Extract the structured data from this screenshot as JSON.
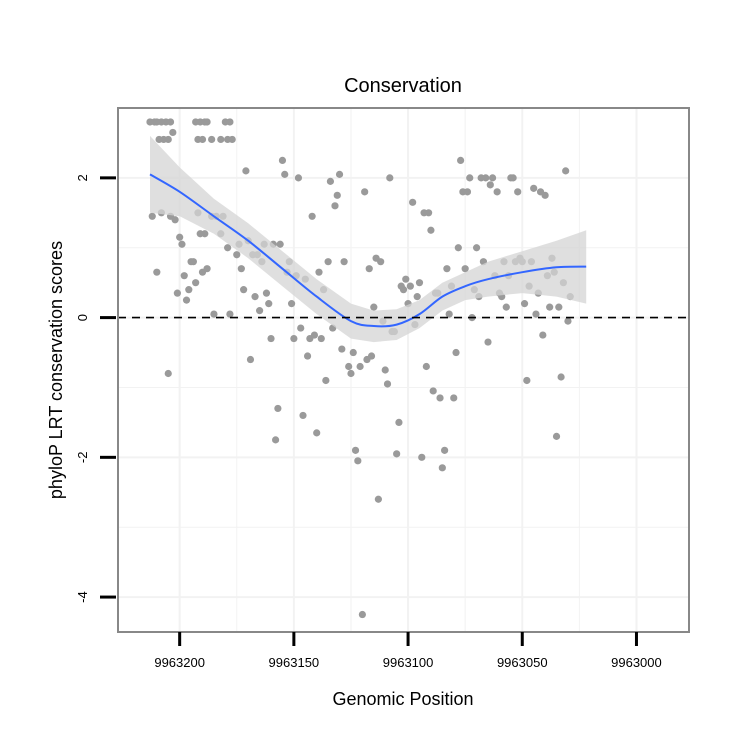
{
  "chart_data": {
    "type": "scatter",
    "title": "Conservation",
    "xlabel": "Genomic Position",
    "ylabel": "phyloP LRT conservation scores",
    "x_reversed": true,
    "xlim": [
      9963227,
      9962977
    ],
    "ylim": [
      -4.5,
      3.0
    ],
    "x_ticks": [
      9963200,
      9963150,
      9963100,
      9963050,
      9963000
    ],
    "x_tick_labels": [
      "9963200",
      "9963150",
      "9963100",
      "9963050",
      "9963000"
    ],
    "y_ticks": [
      2,
      0,
      -2,
      -4
    ],
    "y_tick_labels": [
      "2",
      "0",
      "-2",
      "-4"
    ],
    "grid": true,
    "reference_line": {
      "y": 0,
      "style": "dashed"
    },
    "colors": {
      "points": "#9a9a9a",
      "smooth": "#3366ff",
      "ribbon": "#d4d4d4",
      "panel_border": "#888888",
      "grid": "#f2f2f2"
    },
    "points": [
      [
        9963213,
        2.8
      ],
      [
        9963211,
        2.8
      ],
      [
        9963210,
        2.8
      ],
      [
        9963209,
        2.55
      ],
      [
        9963208,
        2.8
      ],
      [
        9963207,
        2.55
      ],
      [
        9963206,
        2.8
      ],
      [
        9963205,
        2.55
      ],
      [
        9963204,
        2.8
      ],
      [
        9963203,
        2.65
      ],
      [
        9963193,
        2.8
      ],
      [
        9963192,
        2.55
      ],
      [
        9963191,
        2.8
      ],
      [
        9963190,
        2.55
      ],
      [
        9963189,
        2.8
      ],
      [
        9963188,
        2.8
      ],
      [
        9963186,
        2.55
      ],
      [
        9963182,
        2.55
      ],
      [
        9963180,
        2.8
      ],
      [
        9963179,
        2.55
      ],
      [
        9963178,
        2.8
      ],
      [
        9963177,
        2.55
      ],
      [
        9963212,
        1.45
      ],
      [
        9963210,
        0.65
      ],
      [
        9963208,
        1.5
      ],
      [
        9963205,
        -0.8
      ],
      [
        9963204,
        1.45
      ],
      [
        9963202,
        1.4
      ],
      [
        9963201,
        0.35
      ],
      [
        9963200,
        1.15
      ],
      [
        9963199,
        1.05
      ],
      [
        9963198,
        0.6
      ],
      [
        9963197,
        0.25
      ],
      [
        9963196,
        0.4
      ],
      [
        9963195,
        0.8
      ],
      [
        9963194,
        0.8
      ],
      [
        9963193,
        0.5
      ],
      [
        9963192,
        1.5
      ],
      [
        9963191,
        1.2
      ],
      [
        9963190,
        0.65
      ],
      [
        9963189,
        1.2
      ],
      [
        9963188,
        0.7
      ],
      [
        9963186,
        1.45
      ],
      [
        9963185,
        0.05
      ],
      [
        9963184,
        1.45
      ],
      [
        9963182,
        1.2
      ],
      [
        9963181,
        1.45
      ],
      [
        9963179,
        1.0
      ],
      [
        9963178,
        0.05
      ],
      [
        9963175,
        0.9
      ],
      [
        9963174,
        1.05
      ],
      [
        9963173,
        0.7
      ],
      [
        9963172,
        0.4
      ],
      [
        9963171,
        2.1
      ],
      [
        9963170,
        1.1
      ],
      [
        9963169,
        -0.6
      ],
      [
        9963168,
        0.9
      ],
      [
        9963167,
        0.3
      ],
      [
        9963166,
        0.9
      ],
      [
        9963165,
        0.1
      ],
      [
        9963164,
        0.8
      ],
      [
        9963163,
        1.05
      ],
      [
        9963162,
        0.35
      ],
      [
        9963161,
        0.2
      ],
      [
        9963160,
        -0.3
      ],
      [
        9963159,
        1.05
      ],
      [
        9963158,
        -1.75
      ],
      [
        9963157,
        -1.3
      ],
      [
        9963156,
        1.05
      ],
      [
        9963155,
        2.25
      ],
      [
        9963154,
        2.05
      ],
      [
        9963153,
        0.65
      ],
      [
        9963152,
        0.8
      ],
      [
        9963151,
        0.2
      ],
      [
        9963150,
        -0.3
      ],
      [
        9963149,
        0.6
      ],
      [
        9963148,
        2.0
      ],
      [
        9963147,
        -0.15
      ],
      [
        9963146,
        -1.4
      ],
      [
        9963145,
        0.55
      ],
      [
        9963144,
        -0.55
      ],
      [
        9963143,
        -0.3
      ],
      [
        9963142,
        1.45
      ],
      [
        9963141,
        -0.25
      ],
      [
        9963140,
        -1.65
      ],
      [
        9963139,
        0.65
      ],
      [
        9963138,
        -0.3
      ],
      [
        9963137,
        0.4
      ],
      [
        9963136,
        -0.9
      ],
      [
        9963135,
        0.8
      ],
      [
        9963134,
        1.95
      ],
      [
        9963133,
        -0.15
      ],
      [
        9963132,
        1.6
      ],
      [
        9963131,
        1.75
      ],
      [
        9963130,
        2.05
      ],
      [
        9963129,
        -0.45
      ],
      [
        9963128,
        0.8
      ],
      [
        9963126,
        -0.7
      ],
      [
        9963125,
        -0.8
      ],
      [
        9963124,
        -0.5
      ],
      [
        9963123,
        -1.9
      ],
      [
        9963122,
        -2.05
      ],
      [
        9963121,
        -0.7
      ],
      [
        9963120,
        -4.25
      ],
      [
        9963119,
        1.8
      ],
      [
        9963118,
        -0.6
      ],
      [
        9963117,
        0.7
      ],
      [
        9963116,
        -0.55
      ],
      [
        9963115,
        0.15
      ],
      [
        9963114,
        0.85
      ],
      [
        9963113,
        -2.6
      ],
      [
        9963112,
        0.8
      ],
      [
        9963111,
        -0.05
      ],
      [
        9963110,
        -0.75
      ],
      [
        9963109,
        -0.95
      ],
      [
        9963108,
        2.0
      ],
      [
        9963107,
        -0.2
      ],
      [
        9963106,
        -0.2
      ],
      [
        9963105,
        -1.95
      ],
      [
        9963104,
        -1.5
      ],
      [
        9963103,
        0.45
      ],
      [
        9963102,
        0.4
      ],
      [
        9963101,
        0.55
      ],
      [
        9963100,
        0.2
      ],
      [
        9963099,
        0.45
      ],
      [
        9963098,
        1.65
      ],
      [
        9963097,
        -0.1
      ],
      [
        9963096,
        0.3
      ],
      [
        9963095,
        0.5
      ],
      [
        9963094,
        -2.0
      ],
      [
        9963093,
        1.5
      ],
      [
        9963092,
        -0.7
      ],
      [
        9963091,
        1.5
      ],
      [
        9963090,
        1.25
      ],
      [
        9963089,
        -1.05
      ],
      [
        9963088,
        0.35
      ],
      [
        9963087,
        0.35
      ],
      [
        9963086,
        -1.15
      ],
      [
        9963085,
        -2.15
      ],
      [
        9963084,
        -1.9
      ],
      [
        9963083,
        0.7
      ],
      [
        9963082,
        0.05
      ],
      [
        9963081,
        0.45
      ],
      [
        9963080,
        -1.15
      ],
      [
        9963079,
        -0.5
      ],
      [
        9963078,
        1.0
      ],
      [
        9963077,
        2.25
      ],
      [
        9963076,
        1.8
      ],
      [
        9963075,
        0.7
      ],
      [
        9963074,
        1.8
      ],
      [
        9963073,
        2.0
      ],
      [
        9963072,
        0.0
      ],
      [
        9963071,
        0.4
      ],
      [
        9963070,
        1.0
      ],
      [
        9963069,
        0.3
      ],
      [
        9963068,
        2.0
      ],
      [
        9963067,
        0.8
      ],
      [
        9963066,
        2.0
      ],
      [
        9963065,
        -0.35
      ],
      [
        9963064,
        1.9
      ],
      [
        9963063,
        2.0
      ],
      [
        9963062,
        0.6
      ],
      [
        9963061,
        1.8
      ],
      [
        9963060,
        0.35
      ],
      [
        9963059,
        0.3
      ],
      [
        9963058,
        0.8
      ],
      [
        9963057,
        0.15
      ],
      [
        9963056,
        0.6
      ],
      [
        9963055,
        2.0
      ],
      [
        9963054,
        2.0
      ],
      [
        9963053,
        0.8
      ],
      [
        9963052,
        1.8
      ],
      [
        9963051,
        0.85
      ],
      [
        9963050,
        0.8
      ],
      [
        9963049,
        0.2
      ],
      [
        9963048,
        -0.9
      ],
      [
        9963047,
        0.45
      ],
      [
        9963046,
        0.8
      ],
      [
        9963045,
        1.85
      ],
      [
        9963044,
        0.05
      ],
      [
        9963043,
        0.35
      ],
      [
        9963042,
        1.8
      ],
      [
        9963041,
        -0.25
      ],
      [
        9963040,
        1.75
      ],
      [
        9963039,
        0.6
      ],
      [
        9963038,
        0.15
      ],
      [
        9963037,
        0.85
      ],
      [
        9963036,
        0.65
      ],
      [
        9963035,
        -1.7
      ],
      [
        9963034,
        0.15
      ],
      [
        9963033,
        -0.85
      ],
      [
        9963032,
        0.5
      ],
      [
        9963031,
        2.1
      ],
      [
        9963030,
        -0.05
      ],
      [
        9963029,
        0.3
      ]
    ],
    "smooth": {
      "x": [
        9963213,
        9963200,
        9963185,
        9963170,
        9963155,
        9963140,
        9963125,
        9963115,
        9963105,
        9963095,
        9963085,
        9963075,
        9963065,
        9963050,
        9963035,
        9963022
      ],
      "y": [
        2.05,
        1.8,
        1.45,
        1.1,
        0.7,
        0.3,
        -0.05,
        -0.12,
        -0.1,
        0.05,
        0.3,
        0.45,
        0.55,
        0.65,
        0.72,
        0.73
      ],
      "ymin": [
        1.5,
        1.45,
        1.2,
        0.85,
        0.45,
        0.05,
        -0.3,
        -0.35,
        -0.32,
        -0.15,
        0.1,
        0.25,
        0.3,
        0.35,
        0.3,
        0.2
      ],
      "ymax": [
        2.6,
        2.15,
        1.7,
        1.35,
        0.95,
        0.55,
        0.2,
        0.1,
        0.12,
        0.25,
        0.5,
        0.65,
        0.8,
        0.95,
        1.1,
        1.25
      ]
    }
  }
}
